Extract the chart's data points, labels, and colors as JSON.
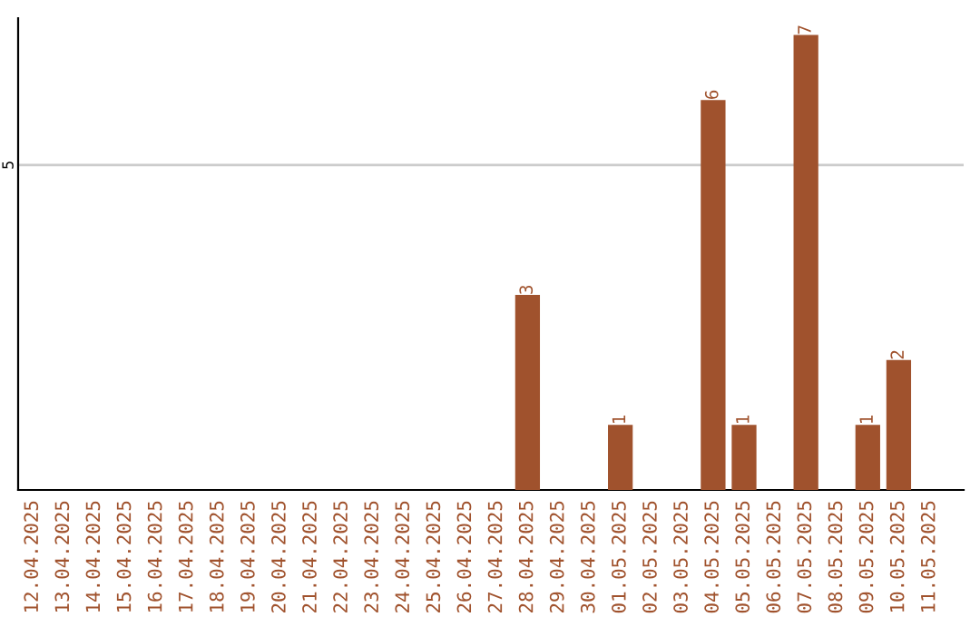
{
  "chart_data": {
    "type": "bar",
    "categories": [
      "12.04.2025",
      "13.04.2025",
      "14.04.2025",
      "15.04.2025",
      "16.04.2025",
      "17.04.2025",
      "18.04.2025",
      "19.04.2025",
      "20.04.2025",
      "21.04.2025",
      "22.04.2025",
      "23.04.2025",
      "24.04.2025",
      "25.04.2025",
      "26.04.2025",
      "27.04.2025",
      "28.04.2025",
      "29.04.2025",
      "30.04.2025",
      "01.05.2025",
      "02.05.2025",
      "03.05.2025",
      "04.05.2025",
      "05.05.2025",
      "06.05.2025",
      "07.05.2025",
      "08.05.2025",
      "09.05.2025",
      "10.05.2025",
      "11.05.2025"
    ],
    "values": [
      null,
      null,
      null,
      null,
      null,
      null,
      null,
      null,
      null,
      null,
      null,
      null,
      null,
      null,
      null,
      null,
      3,
      null,
      null,
      1,
      null,
      null,
      6,
      1,
      null,
      7,
      null,
      1,
      2,
      null
    ],
    "data_labels": true,
    "ylim": [
      0,
      7.26
    ],
    "color": "#a0522d",
    "ref_lines": [
      {
        "axis": "y",
        "value": 5,
        "label": "5",
        "color": "#cccccc"
      }
    ]
  }
}
